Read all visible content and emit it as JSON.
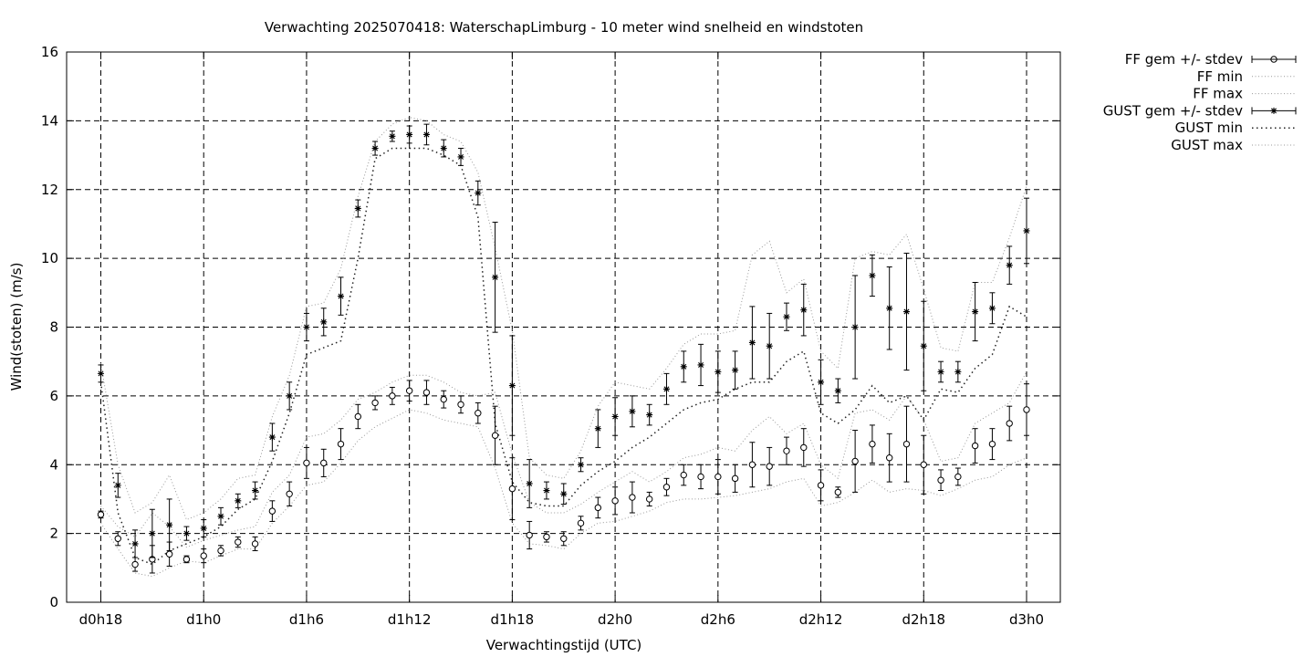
{
  "chart_data": {
    "type": "scatter",
    "title": "Verwachting 2025070418: WaterschapLimburg - 10 meter wind snelheid en windstoten",
    "xlabel": "Verwachtingstijd (UTC)",
    "ylabel": "Wind(stoten) (m/s)",
    "ylim": [
      0,
      16
    ],
    "xlim": [
      -1.5,
      56.5
    ],
    "yticks": [
      0,
      2,
      4,
      6,
      8,
      10,
      12,
      14,
      16
    ],
    "xticks": [
      {
        "x": 0,
        "label": "d0h18"
      },
      {
        "x": 6,
        "label": "d1h0"
      },
      {
        "x": 12,
        "label": "d1h6"
      },
      {
        "x": 18,
        "label": "d1h12"
      },
      {
        "x": 24,
        "label": "d1h18"
      },
      {
        "x": 30,
        "label": "d2h0"
      },
      {
        "x": 36,
        "label": "d2h6"
      },
      {
        "x": 42,
        "label": "d2h12"
      },
      {
        "x": 48,
        "label": "d2h18"
      },
      {
        "x": 54,
        "label": "d3h0"
      }
    ],
    "grid": true,
    "legend_position": "outside-top-right",
    "legend": [
      {
        "label": "FF gem +/- stdev",
        "style": "errorbar-circle"
      },
      {
        "label": "FF min",
        "style": "dotted"
      },
      {
        "label": "FF max",
        "style": "dotted"
      },
      {
        "label": "GUST gem +/- stdev",
        "style": "errorbar-star"
      },
      {
        "label": "GUST min",
        "style": "dotted-dark"
      },
      {
        "label": "GUST max",
        "style": "dotted"
      }
    ],
    "x": [
      0,
      1,
      2,
      3,
      4,
      5,
      6,
      7,
      8,
      9,
      10,
      11,
      12,
      13,
      14,
      15,
      16,
      17,
      18,
      19,
      20,
      21,
      22,
      23,
      24,
      25,
      26,
      27,
      28,
      29,
      30,
      31,
      32,
      33,
      34,
      35,
      36,
      37,
      38,
      39,
      40,
      41,
      42,
      43,
      44,
      45,
      46,
      47,
      48,
      49,
      50,
      51,
      52,
      53,
      54
    ],
    "series": [
      {
        "name": "FF gem +/- stdev",
        "values": [
          2.55,
          1.85,
          1.1,
          1.25,
          1.4,
          1.25,
          1.35,
          1.5,
          1.75,
          1.7,
          2.65,
          3.15,
          4.05,
          4.05,
          4.6,
          5.4,
          5.8,
          6.0,
          6.15,
          6.1,
          5.9,
          5.75,
          5.5,
          4.85,
          3.3,
          1.95,
          1.9,
          1.85,
          2.3,
          2.75,
          2.95,
          3.05,
          3.0,
          3.35,
          3.7,
          3.65,
          3.65,
          3.6,
          4.0,
          3.95,
          4.4,
          4.5,
          3.4,
          3.2,
          4.1,
          4.6,
          4.2,
          4.6,
          4.0,
          3.55,
          3.65,
          4.55,
          4.6,
          5.2,
          5.6
        ],
        "stdev": [
          0.1,
          0.2,
          0.2,
          0.4,
          0.35,
          0.1,
          0.2,
          0.15,
          0.15,
          0.2,
          0.3,
          0.35,
          0.45,
          0.4,
          0.45,
          0.35,
          0.2,
          0.25,
          0.3,
          0.35,
          0.25,
          0.25,
          0.3,
          0.85,
          0.9,
          0.4,
          0.15,
          0.2,
          0.2,
          0.3,
          0.4,
          0.45,
          0.2,
          0.25,
          0.3,
          0.35,
          0.5,
          0.4,
          0.65,
          0.55,
          0.4,
          0.55,
          0.45,
          0.15,
          0.9,
          0.55,
          0.7,
          1.1,
          0.85,
          0.3,
          0.25,
          0.5,
          0.45,
          0.5,
          0.75
        ]
      },
      {
        "name": "FF min",
        "values": [
          2.3,
          1.55,
          0.85,
          0.75,
          1.0,
          1.2,
          1.15,
          1.35,
          1.55,
          1.55,
          2.3,
          2.8,
          3.4,
          3.5,
          4.05,
          4.7,
          5.1,
          5.35,
          5.6,
          5.5,
          5.3,
          5.2,
          5.1,
          3.9,
          2.3,
          1.7,
          1.65,
          1.55,
          2.0,
          2.3,
          2.35,
          2.5,
          2.65,
          2.9,
          3.0,
          3.0,
          3.05,
          3.1,
          3.2,
          3.3,
          3.5,
          3.6,
          2.8,
          2.9,
          3.2,
          3.55,
          3.2,
          3.3,
          3.25,
          3.1,
          3.3,
          3.55,
          3.65,
          4.0,
          4.2
        ]
      },
      {
        "name": "FF max",
        "values": [
          2.8,
          2.2,
          1.9,
          2.6,
          2.2,
          1.6,
          1.8,
          1.95,
          2.1,
          2.2,
          3.2,
          3.7,
          4.8,
          4.9,
          5.3,
          5.9,
          6.1,
          6.4,
          6.6,
          6.6,
          6.4,
          6.1,
          6.0,
          6.1,
          4.3,
          2.9,
          2.6,
          2.6,
          2.85,
          3.2,
          3.5,
          3.8,
          3.5,
          3.8,
          4.2,
          4.3,
          4.5,
          4.4,
          5.0,
          5.4,
          4.9,
          5.2,
          4.0,
          3.6,
          5.5,
          5.6,
          5.3,
          6.0,
          5.3,
          4.1,
          4.2,
          5.2,
          5.5,
          5.8,
          6.7
        ]
      },
      {
        "name": "GUST gem +/- stdev",
        "values": [
          6.65,
          3.4,
          1.7,
          2.0,
          2.25,
          2.0,
          2.15,
          2.5,
          2.95,
          3.25,
          4.8,
          6.0,
          8.0,
          8.15,
          8.9,
          11.45,
          13.2,
          13.55,
          13.6,
          13.6,
          13.2,
          12.95,
          11.9,
          9.45,
          6.3,
          3.45,
          3.25,
          3.15,
          4.0,
          5.05,
          5.4,
          5.55,
          5.45,
          6.2,
          6.85,
          6.9,
          6.7,
          6.75,
          7.55,
          7.45,
          8.3,
          8.5,
          6.4,
          6.15,
          8.0,
          9.5,
          8.55,
          8.45,
          7.45,
          6.7,
          6.7,
          8.45,
          8.55,
          9.8,
          10.8
        ]
      },
      {
        "name": "GUST min",
        "values": [
          6.4,
          2.6,
          1.3,
          1.1,
          1.5,
          1.7,
          1.9,
          2.2,
          2.7,
          3.0,
          4.1,
          5.5,
          7.2,
          7.4,
          7.6,
          10.0,
          12.9,
          13.2,
          13.2,
          13.2,
          13.0,
          12.7,
          11.2,
          5.2,
          3.5,
          2.9,
          2.8,
          2.8,
          3.4,
          3.8,
          4.1,
          4.5,
          4.8,
          5.2,
          5.6,
          5.8,
          5.9,
          6.2,
          6.4,
          6.4,
          7.0,
          7.3,
          5.5,
          5.2,
          5.6,
          6.3,
          5.8,
          6.0,
          5.3,
          6.2,
          6.1,
          6.8,
          7.2,
          8.6,
          8.3
        ]
      },
      {
        "name": "GUST max",
        "values": [
          6.95,
          4.0,
          2.6,
          2.9,
          3.7,
          2.4,
          2.6,
          3.0,
          3.6,
          3.7,
          5.4,
          6.6,
          8.6,
          8.7,
          9.7,
          11.8,
          13.4,
          13.9,
          14.1,
          14.0,
          13.6,
          13.4,
          12.5,
          10.3,
          7.9,
          4.2,
          3.7,
          3.6,
          4.4,
          5.7,
          6.4,
          6.3,
          6.2,
          6.8,
          7.5,
          7.8,
          7.8,
          7.9,
          10.1,
          10.5,
          9.0,
          9.4,
          7.3,
          6.8,
          10.0,
          10.2,
          10.1,
          10.7,
          9.1,
          7.4,
          7.3,
          9.3,
          9.3,
          10.6,
          12.1
        ]
      }
    ],
    "gust_stdev": [
      0.25,
      0.35,
      0.4,
      0.7,
      0.75,
      0.2,
      0.25,
      0.25,
      0.2,
      0.25,
      0.4,
      0.4,
      0.4,
      0.4,
      0.55,
      0.25,
      0.2,
      0.15,
      0.25,
      0.3,
      0.25,
      0.25,
      0.35,
      1.6,
      1.45,
      0.7,
      0.25,
      0.3,
      0.2,
      0.55,
      0.55,
      0.45,
      0.3,
      0.45,
      0.45,
      0.6,
      0.6,
      0.55,
      1.05,
      0.95,
      0.4,
      0.75,
      0.65,
      0.35,
      1.5,
      0.6,
      1.2,
      1.7,
      1.3,
      0.3,
      0.3,
      0.85,
      0.45,
      0.55,
      0.95
    ]
  }
}
